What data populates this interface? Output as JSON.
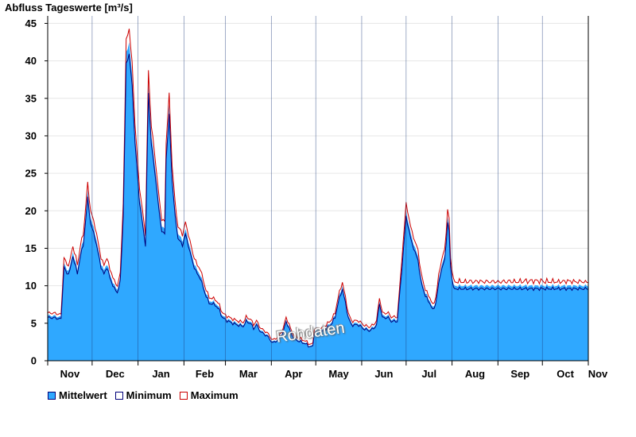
{
  "chart_data": {
    "type": "area",
    "title": "Abfluss Tageswerte [m³/s]",
    "ylim": [
      0,
      46
    ],
    "yticks": [
      0,
      5,
      10,
      15,
      20,
      25,
      30,
      35,
      40,
      45
    ],
    "xlim": [
      0,
      365
    ],
    "months": [
      {
        "label": "Nov",
        "start": 0,
        "len": 30
      },
      {
        "label": "Dec",
        "start": 30,
        "len": 31
      },
      {
        "label": "Jan",
        "start": 61,
        "len": 31
      },
      {
        "label": "Feb",
        "start": 92,
        "len": 28
      },
      {
        "label": "Mar",
        "start": 120,
        "len": 31
      },
      {
        "label": "Apr",
        "start": 151,
        "len": 30
      },
      {
        "label": "May",
        "start": 181,
        "len": 31
      },
      {
        "label": "Jun",
        "start": 212,
        "len": 30
      },
      {
        "label": "Jul",
        "start": 242,
        "len": 31
      },
      {
        "label": "Aug",
        "start": 273,
        "len": 31
      },
      {
        "label": "Sep",
        "start": 304,
        "len": 30
      },
      {
        "label": "Oct",
        "start": 334,
        "len": 31
      },
      {
        "label": "Nov",
        "start": 365,
        "len": 0
      }
    ],
    "series": [
      {
        "name": "Mittelwert",
        "color": "#2fa8ff",
        "points": [
          [
            0,
            6
          ],
          [
            4,
            6
          ],
          [
            9,
            5.8
          ],
          [
            11,
            13
          ],
          [
            13,
            12
          ],
          [
            15,
            12.5
          ],
          [
            17,
            14.5
          ],
          [
            19,
            13
          ],
          [
            20,
            12
          ],
          [
            22,
            14.5
          ],
          [
            24,
            16
          ],
          [
            27,
            22.5
          ],
          [
            29,
            19
          ],
          [
            32,
            17
          ],
          [
            34,
            15
          ],
          [
            36,
            13
          ],
          [
            38,
            12
          ],
          [
            40,
            13
          ],
          [
            42,
            11.5
          ],
          [
            45,
            10
          ],
          [
            47,
            9.5
          ],
          [
            49,
            11
          ],
          [
            51,
            20
          ],
          [
            53,
            41
          ],
          [
            55,
            42.5
          ],
          [
            57,
            38
          ],
          [
            59,
            30
          ],
          [
            62,
            22
          ],
          [
            64,
            19
          ],
          [
            66,
            16
          ],
          [
            68,
            37
          ],
          [
            70,
            30
          ],
          [
            73,
            25
          ],
          [
            75,
            21
          ],
          [
            77,
            18
          ],
          [
            79,
            17.5
          ],
          [
            80,
            28
          ],
          [
            82,
            34
          ],
          [
            84,
            25
          ],
          [
            86,
            20
          ],
          [
            88,
            17
          ],
          [
            91,
            16
          ],
          [
            93,
            17.5
          ],
          [
            95,
            16
          ],
          [
            98,
            13.5
          ],
          [
            101,
            12
          ],
          [
            103,
            11.5
          ],
          [
            106,
            9.5
          ],
          [
            109,
            8
          ],
          [
            113,
            7.8
          ],
          [
            116,
            7
          ],
          [
            118,
            6
          ],
          [
            121,
            5.6
          ],
          [
            124,
            5.3
          ],
          [
            128,
            5
          ],
          [
            132,
            4.8
          ],
          [
            134,
            5.5
          ],
          [
            137,
            5.2
          ],
          [
            139,
            4.5
          ],
          [
            141,
            5
          ],
          [
            144,
            4
          ],
          [
            148,
            3.5
          ],
          [
            152,
            2.5
          ],
          [
            156,
            3
          ],
          [
            159,
            4
          ],
          [
            161,
            5.5
          ],
          [
            164,
            4
          ],
          [
            166,
            3.2
          ],
          [
            169,
            2.8
          ],
          [
            173,
            2.5
          ],
          [
            177,
            2
          ],
          [
            179,
            2
          ],
          [
            180,
            4
          ],
          [
            185,
            4
          ],
          [
            188,
            4.5
          ],
          [
            191,
            5
          ],
          [
            194,
            6
          ],
          [
            196,
            8
          ],
          [
            199,
            10
          ],
          [
            201,
            8
          ],
          [
            203,
            6
          ],
          [
            205,
            5
          ],
          [
            210,
            5
          ],
          [
            213,
            4.5
          ],
          [
            217,
            4.2
          ],
          [
            220,
            4.5
          ],
          [
            222,
            5
          ],
          [
            224,
            8
          ],
          [
            226,
            6
          ],
          [
            230,
            6
          ],
          [
            232,
            5.5
          ],
          [
            236,
            5.5
          ],
          [
            238,
            10
          ],
          [
            240,
            15
          ],
          [
            242,
            20
          ],
          [
            245,
            17
          ],
          [
            248,
            15
          ],
          [
            250,
            14
          ],
          [
            252,
            11
          ],
          [
            255,
            9
          ],
          [
            258,
            8
          ],
          [
            260,
            7
          ],
          [
            262,
            8
          ],
          [
            265,
            12
          ],
          [
            268,
            14
          ],
          [
            270,
            19
          ],
          [
            271,
            18
          ],
          [
            272,
            13
          ],
          [
            274,
            10
          ]
        ]
      },
      {
        "name": "Minimum",
        "color": "#00007a",
        "points": []
      },
      {
        "name": "Maximum",
        "color": "#cc0000",
        "points": []
      }
    ],
    "annotation": "Rohdaten"
  }
}
